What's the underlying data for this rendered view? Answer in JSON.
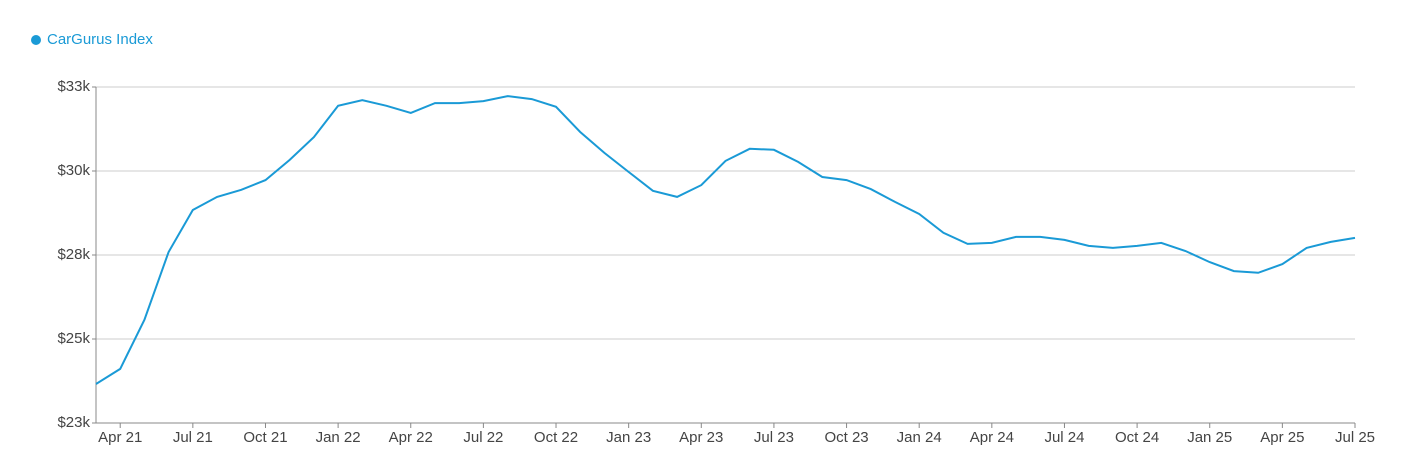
{
  "chart_data": {
    "type": "line",
    "categories": [
      null,
      "Apr 21",
      null,
      null,
      "Jul 21",
      null,
      null,
      "Oct 21",
      null,
      null,
      "Jan 22",
      null,
      null,
      "Apr 22",
      null,
      null,
      "Jul 22",
      null,
      null,
      "Oct 22",
      null,
      null,
      "Jan 23",
      null,
      null,
      "Apr 23",
      null,
      null,
      "Jul 23",
      null,
      null,
      "Oct 23",
      null,
      null,
      "Jan 24",
      null,
      null,
      "Apr 24",
      null,
      null,
      "Jul 24",
      null,
      null,
      "Oct 24",
      null,
      null,
      "Jan 25",
      null,
      null,
      "Apr 25",
      null,
      null,
      "Jul 25"
    ],
    "series": [
      {
        "name": "CarGurus Index",
        "color": "#1a9ad6",
        "values": [
          23660,
          24110,
          25570,
          27590,
          28840,
          29230,
          29440,
          29730,
          30330,
          31010,
          31940,
          32110,
          31940,
          31730,
          32020,
          32020,
          32080,
          32230,
          32140,
          31910,
          31160,
          30540,
          29970,
          29410,
          29230,
          29580,
          30300,
          30660,
          30630,
          30270,
          29820,
          29730,
          29460,
          29080,
          28720,
          28160,
          27830,
          27860,
          28040,
          28040,
          27950,
          27770,
          27710,
          27770,
          27860,
          27620,
          27290,
          27020,
          26970,
          27230,
          27710,
          27890,
          28010
        ]
      }
    ],
    "ylim": [
      22500,
      32500
    ],
    "yticks": [
      {
        "value": 22500,
        "label": "$23k"
      },
      {
        "value": 25000,
        "label": "$25k"
      },
      {
        "value": 27500,
        "label": "$28k"
      },
      {
        "value": 30000,
        "label": "$30k"
      },
      {
        "value": 32500,
        "label": "$33k"
      }
    ],
    "grid": true,
    "legend": "top-left"
  }
}
